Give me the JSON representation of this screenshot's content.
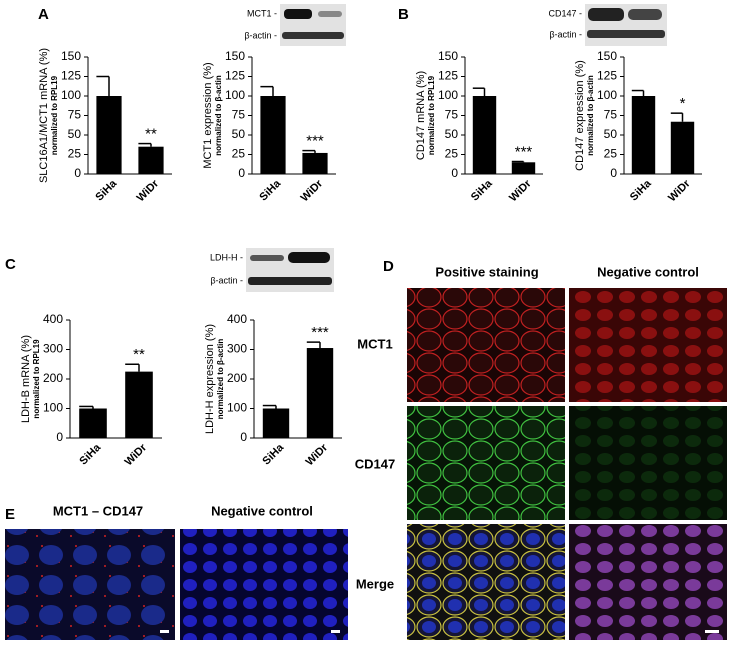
{
  "panels": {
    "a": "A",
    "b": "B",
    "c": "C",
    "d": "D",
    "e": "E"
  },
  "blots": {
    "mct1": "MCT1 -",
    "mct1_actin": "β-actin -",
    "cd147": "CD147 -",
    "cd147_actin": "β-actin -",
    "ldhh": "LDH-H -",
    "ldhh_actin": "β-actin -"
  },
  "microscopy_d": {
    "col_positive": "Positive staining",
    "col_negative": "Negative control",
    "row_mct1": "MCT1",
    "row_cd147": "CD147",
    "row_merge": "Merge"
  },
  "microscopy_e": {
    "col_positive": "MCT1 – CD147",
    "col_negative": "Negative control"
  },
  "chart_data": [
    {
      "type": "bar",
      "ylabel": "SLC16A1/MCT1 mRNA (%)",
      "ylabel_note": "normalized to RPL19",
      "categories": [
        "SiHa",
        "WiDr"
      ],
      "values": [
        100,
        35
      ],
      "errors": [
        25,
        4
      ],
      "significance": [
        null,
        "**"
      ],
      "color": "#000000",
      "ylim": [
        0,
        150
      ],
      "yticks": [
        0,
        25,
        50,
        75,
        100,
        125,
        150
      ]
    },
    {
      "type": "bar",
      "ylabel": "MCT1 expression (%)",
      "ylabel_note": "normalized to β-actin",
      "categories": [
        "SiHa",
        "WiDr"
      ],
      "values": [
        100,
        27
      ],
      "errors": [
        12,
        3
      ],
      "significance": [
        null,
        "***"
      ],
      "color": "#000000",
      "ylim": [
        0,
        150
      ],
      "yticks": [
        0,
        25,
        50,
        75,
        100,
        125,
        150
      ]
    },
    {
      "type": "bar",
      "ylabel": "CD147 mRNA (%)",
      "ylabel_note": "normalized to RPL19",
      "categories": [
        "SiHa",
        "WiDr"
      ],
      "values": [
        100,
        15
      ],
      "errors": [
        10,
        1
      ],
      "significance": [
        null,
        "***"
      ],
      "color": "#000000",
      "ylim": [
        0,
        150
      ],
      "yticks": [
        0,
        25,
        50,
        75,
        100,
        125,
        150
      ]
    },
    {
      "type": "bar",
      "ylabel": "CD147 expression (%)",
      "ylabel_note": "normalized to β-actin",
      "categories": [
        "SiHa",
        "WiDr"
      ],
      "values": [
        100,
        67
      ],
      "errors": [
        7,
        11
      ],
      "significance": [
        null,
        "*"
      ],
      "color": "#000000",
      "ylim": [
        0,
        150
      ],
      "yticks": [
        0,
        25,
        50,
        75,
        100,
        125,
        150
      ]
    },
    {
      "type": "bar",
      "ylabel": "LDH-B mRNA (%)",
      "ylabel_note": "normalized to RPL19",
      "categories": [
        "SiHa",
        "WiDr"
      ],
      "values": [
        100,
        225
      ],
      "errors": [
        7,
        25
      ],
      "significance": [
        null,
        "**"
      ],
      "color": "#000000",
      "ylim": [
        0,
        400
      ],
      "yticks": [
        0,
        100,
        200,
        300,
        400
      ]
    },
    {
      "type": "bar",
      "ylabel": "LDH-H expression (%)",
      "ylabel_note": "normalized to β-actin",
      "categories": [
        "SiHa",
        "WiDr"
      ],
      "values": [
        100,
        305
      ],
      "errors": [
        10,
        20
      ],
      "significance": [
        null,
        "***"
      ],
      "color": "#000000",
      "ylim": [
        0,
        400
      ],
      "yticks": [
        0,
        100,
        200,
        300,
        400
      ]
    }
  ]
}
